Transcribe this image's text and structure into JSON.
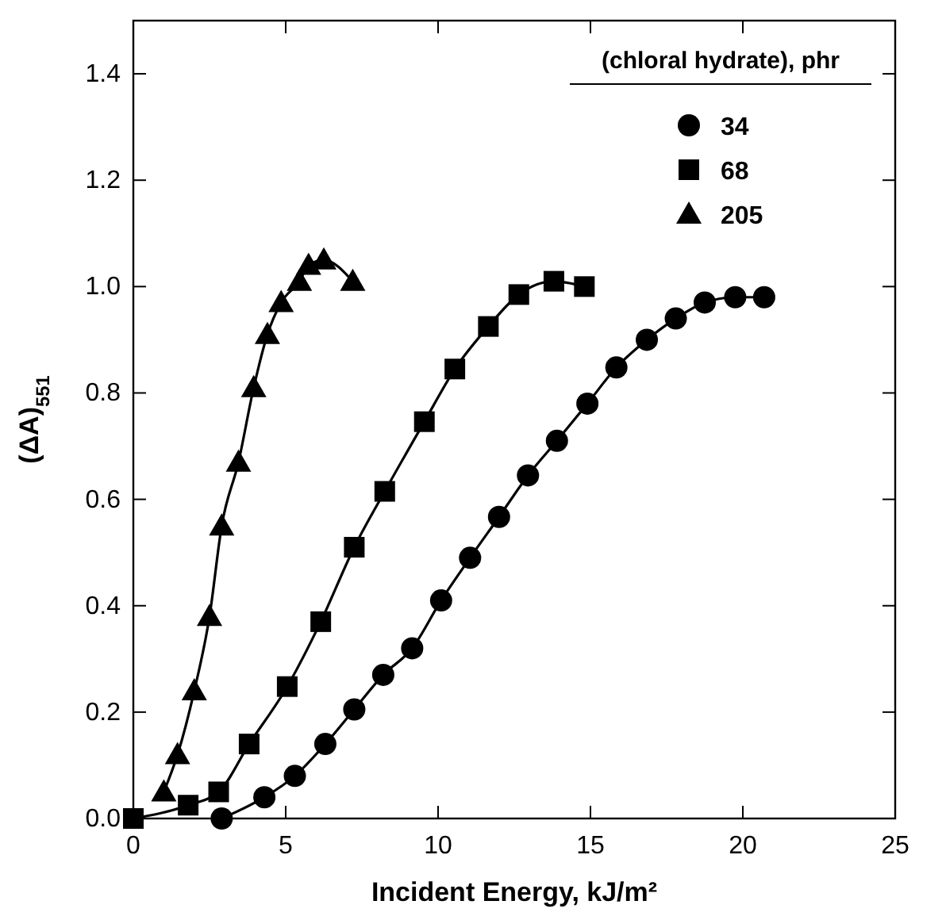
{
  "chart_data": {
    "type": "line",
    "xlabel": "Incident Energy, kJ/m²",
    "ylabel": "(ΔA)$_{551}$",
    "legend_title": "(chloral hydrate), phr",
    "legend": "top right",
    "grid": false,
    "line_style": "solid",
    "xlim": [
      0,
      25
    ],
    "xticks": [
      0,
      5,
      10,
      15,
      20,
      25
    ],
    "ylim": [
      0,
      1.5
    ],
    "yticks": [
      {
        "value": 0,
        "label": "0.0"
      },
      0.2,
      0.4,
      0.6,
      0.8,
      {
        "value": 1,
        "label": "1.0"
      },
      1.2,
      1.4
    ],
    "series": [
      {
        "name": "34",
        "color": "#000000",
        "marker": "circle",
        "x": [
          2.9,
          4.3,
          5.3,
          6.3,
          7.25,
          8.2,
          9.15,
          10.1,
          11.05,
          12.0,
          12.95,
          13.9,
          14.9,
          15.85,
          16.85,
          17.8,
          18.75,
          19.75,
          20.7
        ],
        "values": [
          0,
          0.04,
          0.08,
          0.14,
          0.205,
          0.27,
          0.32,
          0.41,
          0.49,
          0.567,
          0.645,
          0.71,
          0.78,
          0.848,
          0.9,
          0.94,
          0.97,
          0.98,
          0.98
        ]
      },
      {
        "name": "68",
        "color": "#000000",
        "marker": "square",
        "x": [
          0,
          1.8,
          2.8,
          3.8,
          5.05,
          6.15,
          7.25,
          8.25,
          9.55,
          10.55,
          11.65,
          12.65,
          13.8,
          14.8
        ],
        "values": [
          0,
          0.025,
          0.05,
          0.14,
          0.248,
          0.37,
          0.51,
          0.615,
          0.746,
          0.845,
          0.925,
          0.985,
          1.01,
          1.0
        ]
      },
      {
        "name": "205",
        "color": "#000000",
        "marker": "triangle",
        "x": [
          1.0,
          1.45,
          2.0,
          2.5,
          2.9,
          3.45,
          3.95,
          4.4,
          4.85,
          5.45,
          5.75,
          6.25,
          7.2
        ],
        "values": [
          0.05,
          0.12,
          0.24,
          0.38,
          0.55,
          0.67,
          0.81,
          0.91,
          0.97,
          1.01,
          1.04,
          1.05,
          1.01
        ]
      }
    ]
  }
}
